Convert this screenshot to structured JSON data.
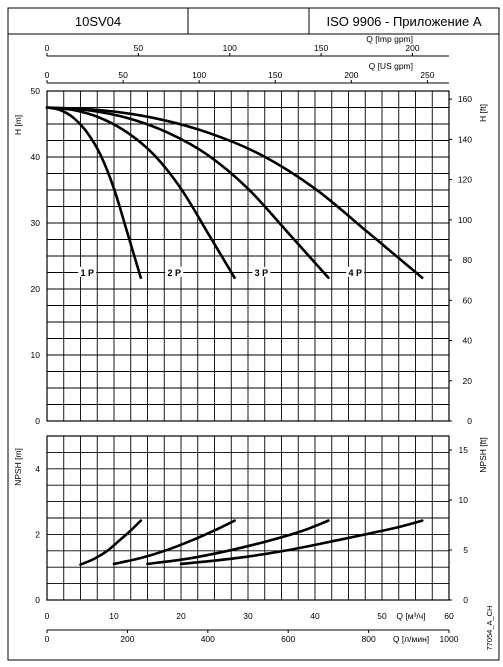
{
  "header": {
    "model": "10SV04",
    "blank": "",
    "standard": "ISO 9906 - Приложение A"
  },
  "chart_data": [
    {
      "type": "line",
      "name": "head",
      "y_left_label": "H [m]",
      "y_right_label": "H [ft]",
      "ylim": [
        0,
        50
      ],
      "ylim_ft": [
        0,
        164.04
      ],
      "y_ticks": [
        0,
        10,
        20,
        30,
        40,
        50
      ],
      "y_ft_ticks": [
        0,
        20,
        40,
        60,
        80,
        100,
        120,
        140,
        160
      ],
      "top_axes": [
        {
          "label": "Q [Imp gpm]",
          "xlim": [
            0,
            220.0
          ],
          "ticks": [
            0,
            50,
            100,
            150,
            200
          ]
        },
        {
          "label": "Q [US gpm]",
          "xlim": [
            0,
            264.2
          ],
          "ticks": [
            0,
            50,
            100,
            150,
            200,
            250
          ]
        }
      ],
      "series": [
        {
          "name": "1 P",
          "x": [
            0,
            2,
            4,
            6,
            8,
            10,
            12,
            14
          ],
          "y": [
            47.5,
            47.1,
            45.9,
            43.7,
            40.3,
            35.2,
            28.5,
            21.7
          ]
        },
        {
          "name": "2 P",
          "x": [
            0,
            4,
            8,
            12,
            16,
            20,
            24,
            28
          ],
          "y": [
            47.5,
            47.1,
            45.9,
            43.7,
            40.3,
            35.2,
            28.5,
            21.7
          ]
        },
        {
          "name": "3 P",
          "x": [
            0,
            6,
            12,
            18,
            24,
            30,
            36,
            42
          ],
          "y": [
            47.5,
            47.1,
            45.9,
            43.7,
            40.3,
            35.2,
            28.5,
            21.7
          ]
        },
        {
          "name": "4 P",
          "x": [
            0,
            8,
            16,
            24,
            32,
            40,
            48,
            56
          ],
          "y": [
            47.5,
            47.1,
            45.9,
            43.7,
            40.3,
            35.2,
            28.5,
            21.7
          ]
        }
      ]
    },
    {
      "type": "line",
      "name": "npsh",
      "y_left_label": "NPSH [m]",
      "y_right_label": "NPSH [ft]",
      "ylim": [
        0,
        5
      ],
      "ylim_ft": [
        0,
        16.4
      ],
      "y_ticks": [
        0,
        2,
        4
      ],
      "y_ft_ticks": [
        0,
        5,
        10,
        15
      ],
      "x_bottom_axes": [
        {
          "label": "Q [м³/ч]",
          "xlim": [
            0,
            60
          ],
          "ticks": [
            0,
            10,
            20,
            30,
            40,
            50,
            60
          ]
        },
        {
          "label": "Q [л/мин]",
          "xlim": [
            0,
            1000
          ],
          "ticks": [
            0,
            200,
            400,
            600,
            800,
            1000
          ]
        }
      ],
      "series": [
        {
          "name": "1 P",
          "x": [
            5,
            7,
            9,
            11,
            12.5,
            14
          ],
          "y": [
            1.08,
            1.25,
            1.5,
            1.85,
            2.12,
            2.42
          ]
        },
        {
          "name": "2 P",
          "x": [
            10,
            14,
            18,
            22,
            25,
            28
          ],
          "y": [
            1.1,
            1.28,
            1.53,
            1.85,
            2.12,
            2.42
          ]
        },
        {
          "name": "3 P",
          "x": [
            15,
            21,
            27,
            33,
            38,
            42
          ],
          "y": [
            1.1,
            1.26,
            1.5,
            1.8,
            2.1,
            2.42
          ]
        },
        {
          "name": "4 P",
          "x": [
            20,
            28,
            36,
            44,
            52,
            56
          ],
          "y": [
            1.1,
            1.27,
            1.52,
            1.85,
            2.2,
            2.42
          ]
        }
      ]
    }
  ],
  "labels": {
    "curve_1": "1 P",
    "curve_2": "2 P",
    "curve_3": "3 P",
    "curve_4": "4 P",
    "code": "77054_A_CH"
  }
}
